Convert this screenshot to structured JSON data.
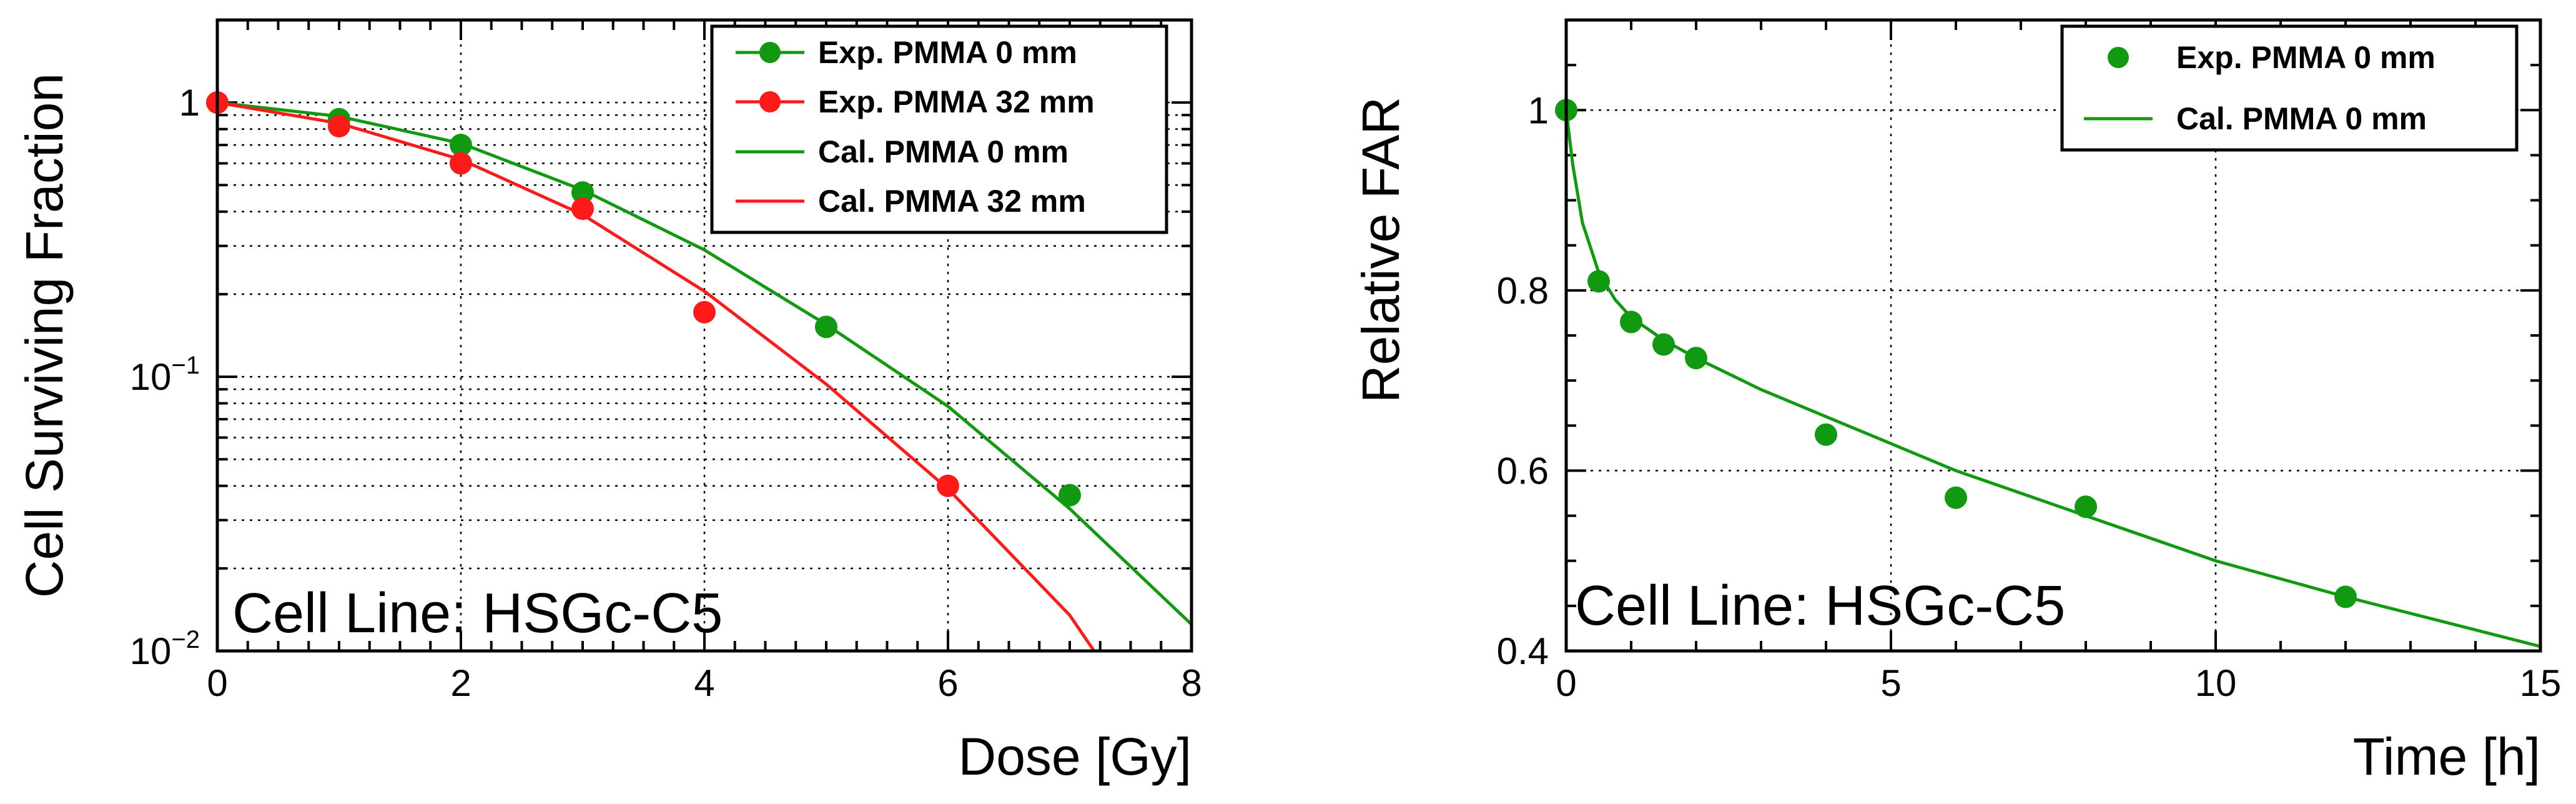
{
  "colors": {
    "green": "#119a11",
    "red": "#ff1a1a",
    "black": "#000000"
  },
  "chart_data": [
    {
      "type": "scatter",
      "name": "survival",
      "annotation": "Cell Line: HSGc-C5",
      "xlabel": "Dose [Gy]",
      "ylabel": "Cell Surviving Fraction",
      "xlim": [
        0,
        8
      ],
      "ylim": [
        0.01,
        2
      ],
      "yscale": "log",
      "xticks": [
        0,
        2,
        4,
        6,
        8
      ],
      "xtick_labels": [
        "0",
        "2",
        "4",
        "6",
        "8"
      ],
      "yticks": [
        {
          "value": 1,
          "base": "1",
          "exp": ""
        },
        {
          "value": 0.1,
          "base": "10",
          "exp": "−1"
        },
        {
          "value": 0.01,
          "base": "10",
          "exp": "−2"
        }
      ],
      "grid": true,
      "legend": "top-right",
      "series": [
        {
          "name": "Exp. PMMA 0 mm",
          "kind": "points",
          "color": "green",
          "x": [
            0,
            1,
            2,
            3,
            5,
            7
          ],
          "y": [
            1.0,
            0.87,
            0.7,
            0.47,
            0.152,
            0.037
          ]
        },
        {
          "name": "Exp. PMMA 32 mm",
          "kind": "points",
          "color": "red",
          "x": [
            0,
            1,
            2,
            3,
            4,
            6
          ],
          "y": [
            1.0,
            0.82,
            0.6,
            0.41,
            0.172,
            0.04
          ]
        },
        {
          "name": "Cal. PMMA 0 mm",
          "kind": "line",
          "color": "green",
          "x": [
            0,
            1,
            2,
            3,
            4,
            5,
            6,
            7,
            8
          ],
          "y": [
            1.0,
            0.89,
            0.71,
            0.48,
            0.29,
            0.155,
            0.078,
            0.033,
            0.0125
          ]
        },
        {
          "name": "Cal. PMMA 32 mm",
          "kind": "line",
          "color": "red",
          "x": [
            0,
            1,
            2,
            3,
            4,
            5,
            6,
            7,
            7.2
          ],
          "y": [
            1.0,
            0.84,
            0.62,
            0.39,
            0.205,
            0.094,
            0.039,
            0.0135,
            0.01
          ]
        }
      ]
    },
    {
      "type": "scatter",
      "name": "far",
      "annotation": "Cell Line: HSGc-C5",
      "xlabel": "Time [h]",
      "ylabel": "Relative FAR",
      "xlim": [
        0,
        15
      ],
      "ylim": [
        0.4,
        1.1
      ],
      "yscale": "linear",
      "xticks": [
        0,
        5,
        10,
        15
      ],
      "xtick_labels": [
        "0",
        "5",
        "10",
        "15"
      ],
      "yticks": [
        {
          "value": 0.4,
          "base": "0.4",
          "exp": ""
        },
        {
          "value": 0.6,
          "base": "0.6",
          "exp": ""
        },
        {
          "value": 0.8,
          "base": "0.8",
          "exp": ""
        },
        {
          "value": 1.0,
          "base": "1",
          "exp": ""
        }
      ],
      "grid": true,
      "legend": "top-right",
      "series": [
        {
          "name": "Exp. PMMA 0 mm",
          "kind": "points",
          "color": "green",
          "x": [
            0,
            0.5,
            1,
            1.5,
            2,
            4,
            6,
            8,
            12
          ],
          "y": [
            1.0,
            0.81,
            0.765,
            0.74,
            0.725,
            0.64,
            0.57,
            0.56,
            0.46
          ]
        },
        {
          "name": "Cal. PMMA 0 mm",
          "kind": "line",
          "color": "green",
          "x": [
            0,
            0.1,
            0.25,
            0.5,
            0.75,
            1,
            1.5,
            2,
            3,
            4,
            5,
            6,
            8,
            10,
            12,
            15
          ],
          "y": [
            1.0,
            0.94,
            0.875,
            0.82,
            0.79,
            0.77,
            0.745,
            0.725,
            0.69,
            0.66,
            0.63,
            0.6,
            0.55,
            0.5,
            0.46,
            0.405
          ]
        }
      ]
    }
  ]
}
